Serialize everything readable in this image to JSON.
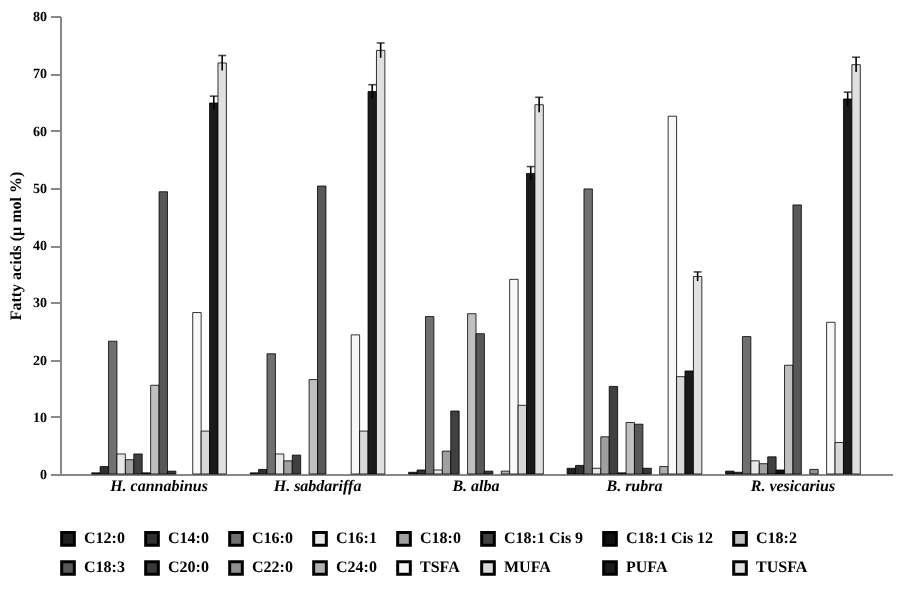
{
  "chart_data": {
    "type": "bar",
    "ylabel": "Fatty acids (μ mol %)",
    "categories": [
      "H. cannabinus",
      "H. sabdariffa",
      "B. alba",
      "B. rubra",
      "R. vesicarius"
    ],
    "ylim": [
      0,
      80
    ],
    "yticks": [
      0,
      10,
      20,
      30,
      40,
      50,
      60,
      70,
      80
    ],
    "grid": false,
    "legend": "bottom",
    "series": [
      {
        "name": "C12:0",
        "color": "#202020",
        "values": [
          0.2,
          0.2,
          0.3,
          1,
          0.5
        ]
      },
      {
        "name": "C14:0",
        "color": "#303030",
        "values": [
          1.3,
          0.8,
          0.7,
          1.5,
          0.3
        ]
      },
      {
        "name": "C16:0",
        "color": "#707070",
        "values": [
          23.2,
          21,
          27.5,
          49.8,
          24
        ]
      },
      {
        "name": "C16:1",
        "color": "#e8e8e8",
        "values": [
          3.5,
          3.5,
          0.7,
          1,
          2.3
        ]
      },
      {
        "name": "C18:0",
        "color": "#a0a0a0",
        "values": [
          2.5,
          2.3,
          4,
          6.5,
          1.8
        ]
      },
      {
        "name": "C18:1 Cis 9",
        "color": "#404040",
        "values": [
          3.5,
          3.3,
          11,
          15.3,
          3
        ]
      },
      {
        "name": "C18:1 Cis 12",
        "color": "#101010",
        "values": [
          0.2,
          null,
          null,
          0.2,
          0.7
        ]
      },
      {
        "name": "C18:2",
        "color": "#c0c0c0",
        "values": [
          15.5,
          16.5,
          28,
          9,
          19
        ]
      },
      {
        "name": "C18:3",
        "color": "#585858",
        "values": [
          49.3,
          50.3,
          24.5,
          8.7,
          47
        ]
      },
      {
        "name": "C20:0",
        "color": "#383838",
        "values": [
          0.5,
          null,
          0.5,
          1,
          null
        ]
      },
      {
        "name": "C22:0",
        "color": "#909090",
        "values": [
          null,
          null,
          null,
          null,
          0.8
        ]
      },
      {
        "name": "C24:0",
        "color": "#b0b0b0",
        "values": [
          null,
          null,
          0.5,
          1.3,
          null
        ]
      },
      {
        "name": "TSFA",
        "color": "#f8f8f8",
        "values": [
          28.2,
          24.3,
          34,
          62.5,
          26.5
        ]
      },
      {
        "name": "MUFA",
        "color": "#d8d8d8",
        "values": [
          7.5,
          7.5,
          12,
          17,
          5.5
        ]
      },
      {
        "name": "PUFA",
        "color": "#1a1a1a",
        "values": [
          64.8,
          66.8,
          52.5,
          18,
          65.5
        ],
        "errors": [
          1.2,
          1.2,
          1.2,
          null,
          1.2
        ]
      },
      {
        "name": "TUSFA",
        "color": "#e0e0e0",
        "values": [
          71.8,
          74,
          64.5,
          34.5,
          71.5
        ],
        "errors": [
          1.3,
          1.3,
          1.3,
          0.8,
          1.3
        ]
      }
    ]
  }
}
